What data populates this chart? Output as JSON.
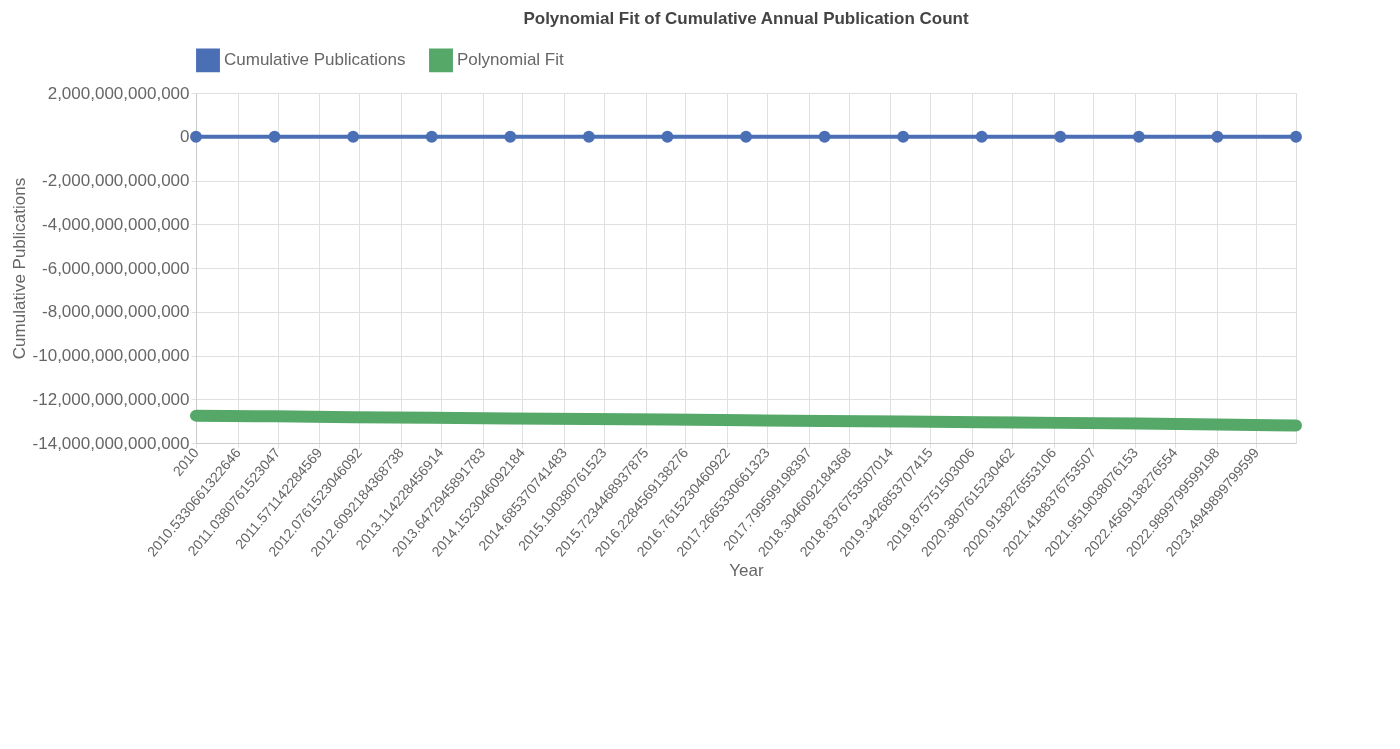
{
  "chart_data": {
    "type": "line",
    "title": "Polynomial Fit of Cumulative Annual Publication Count",
    "xlabel": "Year",
    "ylabel": "Cumulative Publications",
    "xlim": [
      2010,
      2024
    ],
    "xticks": [
      2010,
      {
        "value": 2010.5330661322646,
        "label": "2010.5330661322646"
      },
      {
        "value": 2011.0380761523047,
        "label": "2011.0380761523047"
      },
      {
        "value": 2011.571142284569,
        "label": "2011.571142284569"
      },
      {
        "value": 2012.0761523046092,
        "label": "2012.0761523046092"
      },
      {
        "value": 2012.6092184368738,
        "label": "2012.6092184368738"
      },
      {
        "value": 2013.114228456914,
        "label": "2013.114228456914"
      },
      {
        "value": 2013.6472945891783,
        "label": "2013.6472945891783"
      },
      {
        "value": 2014.1523046092184,
        "label": "2014.1523046092184"
      },
      {
        "value": 2014.685370741483,
        "label": "2014.685370741483"
      },
      {
        "value": 2015.190380761523,
        "label": "2015.190380761523"
      },
      {
        "value": 2015.7234468937875,
        "label": "2015.7234468937875"
      },
      {
        "value": 2016.2284569138276,
        "label": "2016.2284569138276"
      },
      {
        "value": 2016.7615230460922,
        "label": "2016.7615230460922"
      },
      {
        "value": 2017.2665330661323,
        "label": "2017.2665330661323"
      },
      {
        "value": 2017.799599198397,
        "label": "2017.799599198397"
      },
      {
        "value": 2018.3046092184368,
        "label": "2018.3046092184368"
      },
      {
        "value": 2018.8376753507014,
        "label": "2018.8376753507014"
      },
      {
        "value": 2019.3426853707415,
        "label": "2019.3426853707415"
      },
      {
        "value": 2019.875751503006,
        "label": "2019.875751503006"
      },
      {
        "value": 2020.3807615230462,
        "label": "2020.3807615230462"
      },
      {
        "value": 2020.9138276553106,
        "label": "2020.9138276553106"
      },
      {
        "value": 2021.4188376753507,
        "label": "2021.4188376753507"
      },
      {
        "value": 2021.9519038076153,
        "label": "2021.9519038076153"
      },
      {
        "value": 2022.4569138276554,
        "label": "2022.4569138276554"
      },
      {
        "value": 2022.9899799599198,
        "label": "2022.9899799599198"
      },
      {
        "value": 2023.4949899799599,
        "label": "2023.4949899799599"
      }
    ],
    "ylim": [
      -14000000000000,
      2000000000000
    ],
    "yticks": [
      {
        "value": -14000000000000,
        "label": "-14,000,000,000,000"
      },
      {
        "value": -12000000000000,
        "label": "-12,000,000,000,000"
      },
      {
        "value": -10000000000000,
        "label": "-10,000,000,000,000"
      },
      {
        "value": -8000000000000,
        "label": "-8,000,000,000,000"
      },
      {
        "value": -6000000000000,
        "label": "-6,000,000,000,000"
      },
      {
        "value": -4000000000000,
        "label": "-4,000,000,000,000"
      },
      {
        "value": -2000000000000,
        "label": "-2,000,000,000,000"
      },
      0,
      {
        "value": 2000000000000,
        "label": "2,000,000,000,000"
      }
    ],
    "grid": true,
    "legend": "top",
    "x": [
      2010,
      2011,
      2012,
      2013,
      2014,
      2015,
      2016,
      2017,
      2018,
      2019,
      2020,
      2021,
      2022,
      2023,
      2024
    ],
    "series": [
      {
        "name": "Cumulative Publications",
        "color": "#4a6fb5",
        "marker": "circle",
        "values": [
          0,
          0,
          0,
          0,
          0,
          0,
          0,
          0,
          0,
          0,
          0,
          0,
          0,
          0,
          0
        ]
      },
      {
        "name": "Polynomial Fit",
        "color": "#55a868",
        "marker": "none",
        "values": [
          -12750000000000,
          -12780000000000,
          -12820000000000,
          -12850000000000,
          -12880000000000,
          -12900000000000,
          -12930000000000,
          -12960000000000,
          -12990000000000,
          -13020000000000,
          -13050000000000,
          -13080000000000,
          -13110000000000,
          -13150000000000,
          -13200000000000
        ]
      }
    ]
  }
}
